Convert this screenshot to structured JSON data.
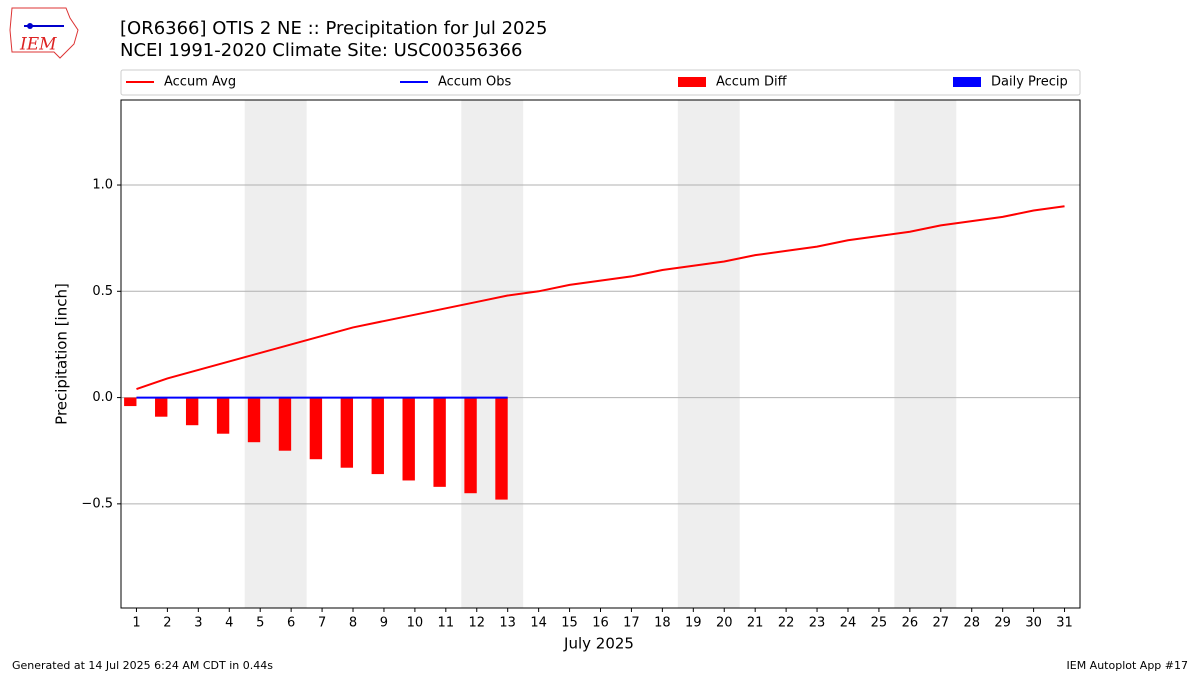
{
  "chart_data": {
    "type": "line",
    "title": "[OR6366] OTIS 2 NE :: Precipitation for Jul 2025",
    "subtitle": "NCEI 1991-2020 Climate Site: USC00356366",
    "xlabel": "July 2025",
    "ylabel": "Precipitation [inch]",
    "x": [
      1,
      2,
      3,
      4,
      5,
      6,
      7,
      8,
      9,
      10,
      11,
      12,
      13,
      14,
      15,
      16,
      17,
      18,
      19,
      20,
      21,
      22,
      23,
      24,
      25,
      26,
      27,
      28,
      29,
      30,
      31
    ],
    "series": [
      {
        "name": "Accum Avg",
        "type": "line",
        "color": "#ff0000",
        "values": [
          0.04,
          0.09,
          0.13,
          0.17,
          0.21,
          0.25,
          0.29,
          0.33,
          0.36,
          0.39,
          0.42,
          0.45,
          0.48,
          0.5,
          0.53,
          0.55,
          0.57,
          0.6,
          0.62,
          0.64,
          0.67,
          0.69,
          0.71,
          0.74,
          0.76,
          0.78,
          0.81,
          0.83,
          0.85,
          0.88,
          0.9
        ]
      },
      {
        "name": "Accum Obs",
        "type": "line",
        "color": "#0000ff",
        "values": [
          0,
          0,
          0,
          0,
          0,
          0,
          0,
          0,
          0,
          0,
          0,
          0,
          0,
          null,
          null,
          null,
          null,
          null,
          null,
          null,
          null,
          null,
          null,
          null,
          null,
          null,
          null,
          null,
          null,
          null,
          null
        ]
      },
      {
        "name": "Accum Diff",
        "type": "bar",
        "color": "#ff0000",
        "values": [
          -0.04,
          -0.09,
          -0.13,
          -0.17,
          -0.21,
          -0.25,
          -0.29,
          -0.33,
          -0.36,
          -0.39,
          -0.42,
          -0.45,
          -0.48,
          null,
          null,
          null,
          null,
          null,
          null,
          null,
          null,
          null,
          null,
          null,
          null,
          null,
          null,
          null,
          null,
          null,
          null
        ]
      },
      {
        "name": "Daily Precip",
        "type": "bar",
        "color": "#0000ff",
        "values": [
          0,
          0,
          0,
          0,
          0,
          0,
          0,
          0,
          0,
          0,
          0,
          0,
          0,
          null,
          null,
          null,
          null,
          null,
          null,
          null,
          null,
          null,
          null,
          null,
          null,
          null,
          null,
          null,
          null,
          null,
          null
        ]
      }
    ],
    "shaded_x_ranges": [
      [
        4.5,
        6.5
      ],
      [
        11.5,
        13.5
      ],
      [
        18.5,
        20.5
      ],
      [
        25.5,
        27.5
      ]
    ],
    "shade_color": "#eeeeee",
    "xlim": [
      0.5,
      31.5
    ],
    "ylim": [
      -0.99,
      1.4
    ],
    "xticks": [
      1,
      2,
      3,
      4,
      5,
      6,
      7,
      8,
      9,
      10,
      11,
      12,
      13,
      14,
      15,
      16,
      17,
      18,
      19,
      20,
      21,
      22,
      23,
      24,
      25,
      26,
      27,
      28,
      29,
      30,
      31
    ],
    "yticks": [
      {
        "value": -0.5,
        "label": "−0.5"
      },
      {
        "value": 0,
        "label": "0.0"
      },
      0.5,
      {
        "value": 1,
        "label": "1.0"
      }
    ],
    "grid": true,
    "legend": "top",
    "footer_left": "Generated at 14 Jul 2025 6:24 AM CDT in 0.44s",
    "footer_right": "IEM Autoplot App #17",
    "logo": "IEM"
  }
}
